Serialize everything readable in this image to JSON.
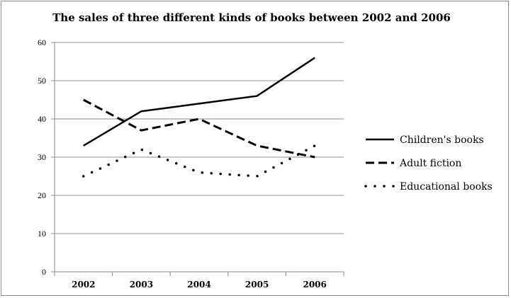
{
  "chart_data": {
    "type": "line",
    "title": "The sales of three different kinds of books between 2002 and 2006",
    "xlabel": "",
    "ylabel": "",
    "categories": [
      "2002",
      "2003",
      "2004",
      "2005",
      "2006"
    ],
    "ylim": [
      0,
      60
    ],
    "yticks": [
      0,
      10,
      20,
      30,
      40,
      50,
      60
    ],
    "grid": true,
    "legend": "right",
    "series": [
      {
        "name": "Children's books",
        "values": [
          33,
          42,
          44,
          46,
          56
        ],
        "style": "solid",
        "color": "#000000"
      },
      {
        "name": "Adult fiction",
        "values": [
          45,
          37,
          40,
          33,
          30
        ],
        "style": "dashed",
        "color": "#000000"
      },
      {
        "name": "Educational books",
        "values": [
          25,
          32,
          26,
          25,
          33
        ],
        "style": "dotted",
        "color": "#000000"
      }
    ]
  }
}
